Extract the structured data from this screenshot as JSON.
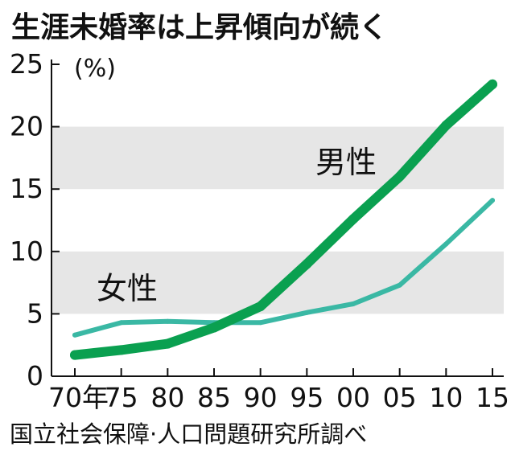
{
  "chart_data": {
    "type": "line",
    "title": "生涯未婚率は上昇傾向が続く",
    "unit_label": "(%)",
    "source": "国立社会保障·人口問題研究所調べ",
    "x": [
      1970,
      1975,
      1980,
      1985,
      1990,
      1995,
      2000,
      2005,
      2010,
      2015
    ],
    "x_tick_labels": [
      "70年",
      "75",
      "80",
      "85",
      "90",
      "95",
      "00",
      "05",
      "10",
      "15"
    ],
    "y_tick_labels": [
      "0",
      "5",
      "10",
      "15",
      "20",
      "25"
    ],
    "y_ticks": [
      0,
      5,
      10,
      15,
      20,
      25
    ],
    "ylim": [
      0,
      25
    ],
    "grid": "alternating-bands",
    "series": [
      {
        "name": "男性",
        "color": "#0aa050",
        "values": [
          1.7,
          2.1,
          2.6,
          3.9,
          5.6,
          9.0,
          12.6,
          16.0,
          20.1,
          23.4
        ]
      },
      {
        "name": "女性",
        "color": "#3ab8a4",
        "values": [
          3.3,
          4.3,
          4.4,
          4.3,
          4.3,
          5.1,
          5.8,
          7.3,
          10.6,
          14.1
        ]
      }
    ]
  }
}
